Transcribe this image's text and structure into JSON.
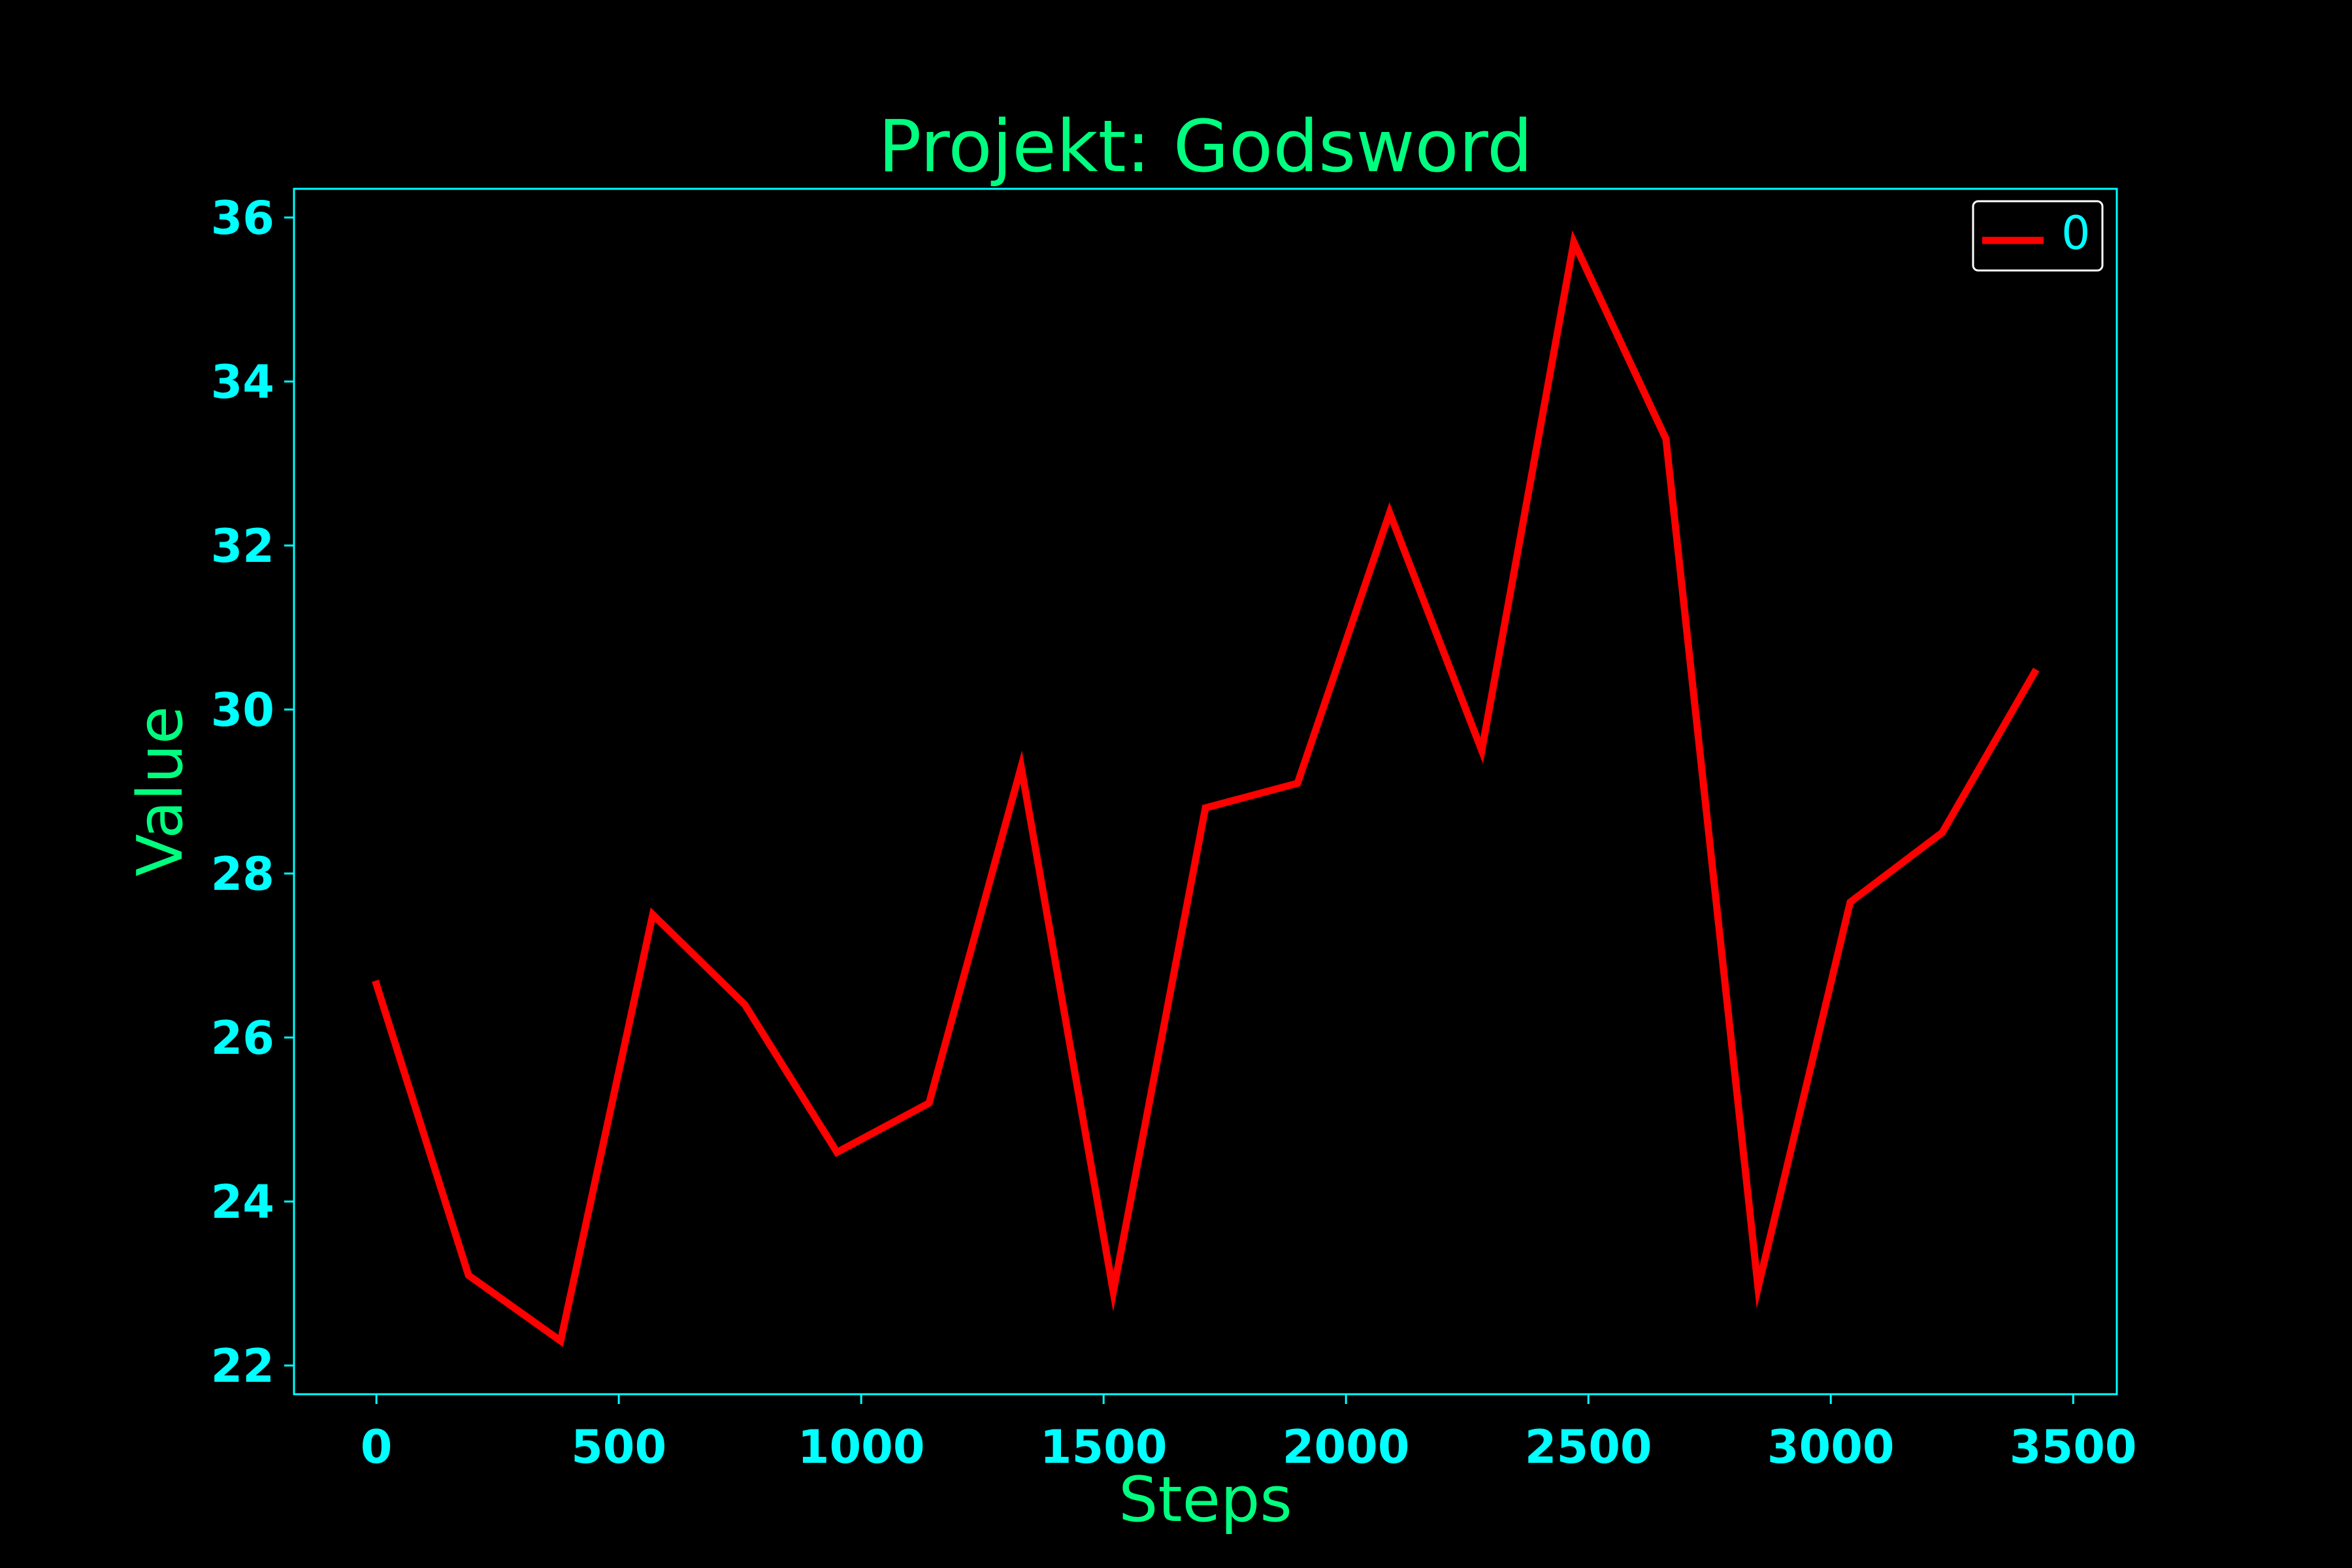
{
  "chart_data": {
    "type": "line",
    "title": "Projekt: Godsword",
    "xlabel": "Steps",
    "ylabel": "Value",
    "xlim": [
      -170,
      3590
    ],
    "ylim": [
      21.65,
      36.35
    ],
    "xticks": [
      0,
      500,
      1000,
      1500,
      2000,
      2500,
      3000,
      3500
    ],
    "yticks": [
      22,
      24,
      26,
      28,
      30,
      32,
      34,
      36
    ],
    "grid": false,
    "legend_position": "top-right",
    "series": [
      {
        "name": "0",
        "color": "#ff0000",
        "x": [
          0,
          190,
          380,
          570,
          760,
          950,
          1140,
          1330,
          1520,
          1710,
          1900,
          2090,
          2280,
          2470,
          2660,
          2850,
          3040,
          3230,
          3420
        ],
        "y": [
          26.65,
          23.1,
          22.3,
          27.5,
          26.4,
          24.6,
          25.2,
          29.3,
          22.9,
          28.8,
          29.1,
          32.4,
          29.5,
          35.7,
          33.3,
          22.95,
          27.65,
          28.5,
          30.45
        ]
      }
    ]
  },
  "colors": {
    "background": "#000000",
    "frame": "#00ffff",
    "title": "#00ff7f",
    "ticks": "#00ffff",
    "legend_border": "#ffffff"
  }
}
